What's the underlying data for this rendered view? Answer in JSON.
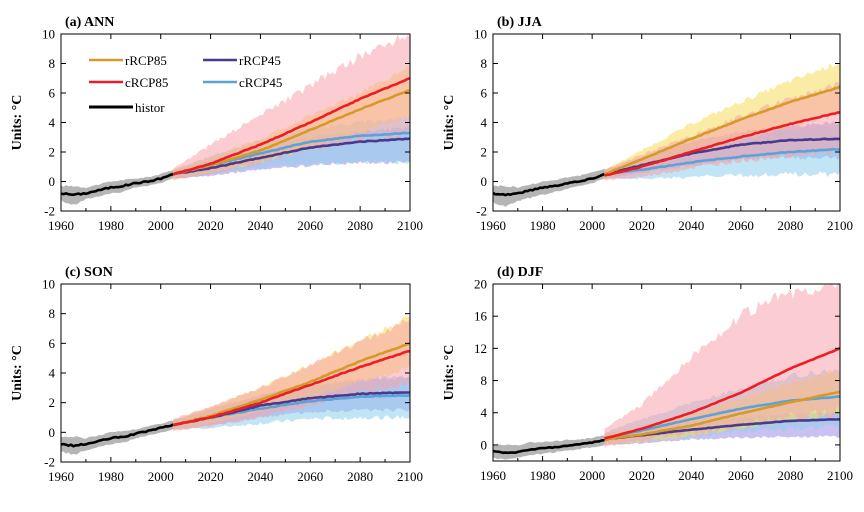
{
  "colors": {
    "rRCP85": "#d49a2a",
    "cRCP85": "#ee1c24",
    "rRCP45": "#4a3a8c",
    "cRCP45": "#5ba3d6",
    "histor": "#000000",
    "rRCP85_band": "#f5dc5a",
    "cRCP85_band": "#f7a3ab",
    "rRCP45_band": "#9e8ee8",
    "cRCP45_band": "#8fd0ec",
    "histor_band": "#a8a8a8"
  },
  "legend": {
    "items": [
      {
        "key": "rRCP85",
        "label": "rRCP85"
      },
      {
        "key": "rRCP45",
        "label": "rRCP45"
      },
      {
        "key": "cRCP85",
        "label": "cRCP85"
      },
      {
        "key": "cRCP45",
        "label": "cRCP45"
      },
      {
        "key": "histor",
        "label": "histor"
      }
    ]
  },
  "chart_data": [
    {
      "type": "line",
      "title": "(a) ANN",
      "ylabel": "Units: °C",
      "xlim": [
        1960,
        2100
      ],
      "ylim": [
        -2,
        10
      ],
      "xticks": [
        1960,
        1980,
        2000,
        2020,
        2040,
        2060,
        2080,
        2100
      ],
      "yticks": [
        -2,
        0,
        2,
        4,
        6,
        8,
        10
      ],
      "legend_position": "top-left",
      "series": [
        {
          "name": "histor",
          "x": [
            1960,
            1965,
            1970,
            1975,
            1980,
            1985,
            1990,
            1995,
            2000,
            2005
          ],
          "y": [
            -0.8,
            -0.9,
            -0.8,
            -0.6,
            -0.4,
            -0.3,
            -0.1,
            0.0,
            0.2,
            0.5
          ],
          "lower": [
            -1.3,
            -1.6,
            -1.2,
            -1.0,
            -0.8,
            -0.7,
            -0.4,
            -0.3,
            -0.1,
            0.2
          ],
          "upper": [
            -0.3,
            -0.3,
            -0.4,
            -0.2,
            0.0,
            0.1,
            0.2,
            0.3,
            0.5,
            0.8
          ]
        },
        {
          "name": "cRCP45",
          "x": [
            2005,
            2020,
            2040,
            2060,
            2080,
            2100
          ],
          "y": [
            0.5,
            1.1,
            1.9,
            2.7,
            3.1,
            3.3
          ],
          "lower": [
            0.2,
            0.5,
            0.9,
            1.2,
            1.3,
            1.3
          ],
          "upper": [
            0.8,
            1.7,
            2.8,
            3.6,
            4.0,
            4.4
          ]
        },
        {
          "name": "rRCP45",
          "x": [
            2005,
            2020,
            2040,
            2060,
            2080,
            2100
          ],
          "y": [
            0.5,
            0.9,
            1.6,
            2.3,
            2.7,
            2.9
          ],
          "lower": [
            0.2,
            0.4,
            0.8,
            1.1,
            1.3,
            1.3
          ],
          "upper": [
            0.8,
            1.4,
            2.3,
            3.0,
            3.4,
            3.6
          ]
        },
        {
          "name": "rRCP85",
          "x": [
            2005,
            2020,
            2040,
            2060,
            2080,
            2100
          ],
          "y": [
            0.5,
            1.1,
            2.1,
            3.5,
            4.9,
            6.2
          ],
          "lower": [
            0.2,
            0.6,
            1.3,
            2.3,
            3.3,
            4.5
          ],
          "upper": [
            0.8,
            1.6,
            2.9,
            4.5,
            6.0,
            7.8
          ]
        },
        {
          "name": "cRCP85",
          "x": [
            2005,
            2020,
            2040,
            2060,
            2080,
            2100
          ],
          "y": [
            0.5,
            1.2,
            2.5,
            4.0,
            5.6,
            7.0
          ],
          "lower": [
            0.1,
            0.5,
            1.3,
            2.2,
            2.8,
            3.4
          ],
          "upper": [
            0.9,
            2.5,
            4.5,
            6.5,
            8.5,
            10.0
          ]
        }
      ]
    },
    {
      "type": "line",
      "title": "(b) JJA",
      "ylabel": "Units: °C",
      "xlim": [
        1960,
        2100
      ],
      "ylim": [
        -2,
        10
      ],
      "xticks": [
        1960,
        1980,
        2000,
        2020,
        2040,
        2060,
        2080,
        2100
      ],
      "yticks": [
        -2,
        0,
        2,
        4,
        6,
        8,
        10
      ],
      "series": [
        {
          "name": "histor",
          "x": [
            1960,
            1965,
            1970,
            1975,
            1980,
            1985,
            1990,
            1995,
            2000,
            2005
          ],
          "y": [
            -0.8,
            -0.9,
            -0.8,
            -0.6,
            -0.4,
            -0.3,
            -0.1,
            0.0,
            0.2,
            0.5
          ],
          "lower": [
            -1.4,
            -1.7,
            -1.3,
            -1.1,
            -0.9,
            -0.7,
            -0.5,
            -0.3,
            -0.1,
            0.2
          ],
          "upper": [
            -0.3,
            -0.3,
            -0.4,
            -0.2,
            0.0,
            0.1,
            0.3,
            0.4,
            0.6,
            0.9
          ]
        },
        {
          "name": "cRCP45",
          "x": [
            2005,
            2020,
            2040,
            2060,
            2080,
            2100
          ],
          "y": [
            0.5,
            0.8,
            1.3,
            1.7,
            2.0,
            2.2
          ],
          "lower": [
            0.2,
            0.2,
            0.3,
            0.4,
            0.5,
            0.5
          ],
          "upper": [
            0.8,
            1.4,
            2.3,
            3.0,
            3.5,
            3.8
          ]
        },
        {
          "name": "rRCP45",
          "x": [
            2005,
            2020,
            2040,
            2060,
            2080,
            2100
          ],
          "y": [
            0.5,
            1.1,
            1.9,
            2.5,
            2.8,
            2.9
          ],
          "lower": [
            0.2,
            0.6,
            1.1,
            1.5,
            1.6,
            1.6
          ],
          "upper": [
            0.8,
            1.6,
            2.7,
            3.4,
            3.8,
            4.0
          ]
        },
        {
          "name": "rRCP85",
          "x": [
            2005,
            2020,
            2040,
            2060,
            2080,
            2100
          ],
          "y": [
            0.5,
            1.5,
            2.9,
            4.2,
            5.4,
            6.4
          ],
          "lower": [
            0.2,
            0.9,
            1.9,
            2.8,
            3.7,
            4.6
          ],
          "upper": [
            0.8,
            2.1,
            3.9,
            5.4,
            6.8,
            8.1
          ]
        },
        {
          "name": "cRCP85",
          "x": [
            2005,
            2020,
            2040,
            2060,
            2080,
            2100
          ],
          "y": [
            0.4,
            1.0,
            2.0,
            3.0,
            3.9,
            4.7
          ],
          "lower": [
            0.1,
            0.3,
            0.9,
            1.4,
            1.8,
            2.1
          ],
          "upper": [
            0.8,
            1.8,
            3.1,
            4.4,
            5.6,
            6.6
          ]
        }
      ]
    },
    {
      "type": "line",
      "title": "(c) SON",
      "ylabel": "Units: °C",
      "xlim": [
        1960,
        2100
      ],
      "ylim": [
        -2,
        10
      ],
      "xticks": [
        1960,
        1980,
        2000,
        2020,
        2040,
        2060,
        2080,
        2100
      ],
      "yticks": [
        -2,
        0,
        2,
        4,
        6,
        8,
        10
      ],
      "series": [
        {
          "name": "histor",
          "x": [
            1960,
            1965,
            1970,
            1975,
            1980,
            1985,
            1990,
            1995,
            2000,
            2005
          ],
          "y": [
            -0.8,
            -0.9,
            -0.8,
            -0.6,
            -0.4,
            -0.3,
            -0.1,
            0.1,
            0.3,
            0.5
          ],
          "lower": [
            -1.3,
            -1.5,
            -1.2,
            -1.0,
            -0.8,
            -0.7,
            -0.4,
            -0.2,
            0.0,
            0.2
          ],
          "upper": [
            -0.3,
            -0.3,
            -0.4,
            -0.2,
            0.0,
            0.1,
            0.2,
            0.4,
            0.6,
            0.8
          ]
        },
        {
          "name": "cRCP45",
          "x": [
            2005,
            2020,
            2040,
            2060,
            2080,
            2100
          ],
          "y": [
            0.5,
            1.0,
            1.6,
            2.1,
            2.4,
            2.5
          ],
          "lower": [
            0.2,
            0.3,
            0.6,
            0.9,
            1.0,
            1.0
          ],
          "upper": [
            0.8,
            1.6,
            2.5,
            3.2,
            3.6,
            3.8
          ]
        },
        {
          "name": "rRCP45",
          "x": [
            2005,
            2020,
            2040,
            2060,
            2080,
            2100
          ],
          "y": [
            0.5,
            1.0,
            1.8,
            2.3,
            2.6,
            2.7
          ],
          "lower": [
            0.2,
            0.5,
            1.0,
            1.4,
            1.5,
            1.5
          ],
          "upper": [
            0.8,
            1.5,
            2.5,
            3.1,
            3.5,
            3.7
          ]
        },
        {
          "name": "rRCP85",
          "x": [
            2005,
            2020,
            2040,
            2060,
            2080,
            2100
          ],
          "y": [
            0.5,
            1.1,
            2.2,
            3.4,
            4.8,
            6.0
          ],
          "lower": [
            0.2,
            0.6,
            1.4,
            2.3,
            3.4,
            4.4
          ],
          "upper": [
            0.8,
            1.7,
            3.0,
            4.6,
            6.2,
            7.8
          ]
        },
        {
          "name": "cRCP85",
          "x": [
            2005,
            2020,
            2040,
            2060,
            2080,
            2100
          ],
          "y": [
            0.5,
            1.0,
            2.0,
            3.2,
            4.4,
            5.5
          ],
          "lower": [
            0.1,
            0.4,
            1.0,
            1.8,
            2.6,
            3.3
          ],
          "upper": [
            0.9,
            1.7,
            3.0,
            4.6,
            6.1,
            7.6
          ]
        }
      ]
    },
    {
      "type": "line",
      "title": "(d) DJF",
      "ylabel": "Units: °C",
      "xlim": [
        1960,
        2100
      ],
      "ylim": [
        -2,
        20
      ],
      "xticks": [
        1960,
        1980,
        2000,
        2020,
        2040,
        2060,
        2080,
        2100
      ],
      "yticks": [
        0,
        4,
        8,
        12,
        16,
        20
      ],
      "series": [
        {
          "name": "histor",
          "x": [
            1960,
            1965,
            1970,
            1975,
            1980,
            1985,
            1990,
            1995,
            2000,
            2005
          ],
          "y": [
            -0.8,
            -1.0,
            -0.9,
            -0.6,
            -0.4,
            -0.3,
            -0.1,
            0.1,
            0.3,
            0.6
          ],
          "lower": [
            -1.6,
            -1.8,
            -1.6,
            -1.3,
            -1.1,
            -0.9,
            -0.7,
            -0.5,
            -0.3,
            0.0
          ],
          "upper": [
            0.0,
            0.0,
            0.0,
            0.3,
            0.4,
            0.5,
            0.6,
            0.7,
            0.9,
            1.2
          ]
        },
        {
          "name": "rRCP45",
          "x": [
            2005,
            2020,
            2040,
            2060,
            2080,
            2100
          ],
          "y": [
            0.7,
            1.2,
            1.9,
            2.5,
            3.0,
            3.2
          ],
          "lower": [
            0.0,
            0.2,
            0.7,
            0.9,
            1.0,
            1.0
          ],
          "upper": [
            1.4,
            1.9,
            2.8,
            3.4,
            3.9,
            4.1
          ]
        },
        {
          "name": "cRCP45",
          "x": [
            2005,
            2020,
            2040,
            2060,
            2080,
            2100
          ],
          "y": [
            0.8,
            1.8,
            3.2,
            4.5,
            5.5,
            6.0
          ],
          "lower": [
            0.1,
            0.5,
            1.0,
            1.6,
            2.0,
            2.2
          ],
          "upper": [
            1.5,
            3.2,
            5.2,
            7.0,
            8.6,
            9.3
          ]
        },
        {
          "name": "rRCP85",
          "x": [
            2005,
            2020,
            2040,
            2060,
            2080,
            2100
          ],
          "y": [
            0.7,
            1.3,
            2.4,
            3.9,
            5.3,
            6.6
          ],
          "lower": [
            0.0,
            0.4,
            1.1,
            2.1,
            3.0,
            3.8
          ],
          "upper": [
            1.4,
            2.3,
            3.8,
            5.8,
            7.7,
            9.3
          ]
        },
        {
          "name": "cRCP85",
          "x": [
            2005,
            2020,
            2040,
            2060,
            2080,
            2100
          ],
          "y": [
            0.8,
            2.0,
            4.0,
            6.5,
            9.5,
            12.0
          ],
          "lower": [
            -0.2,
            0.5,
            1.5,
            2.5,
            3.5,
            4.0
          ],
          "upper": [
            2.0,
            5.0,
            11.0,
            16.0,
            19.0,
            20.0
          ]
        }
      ]
    }
  ]
}
